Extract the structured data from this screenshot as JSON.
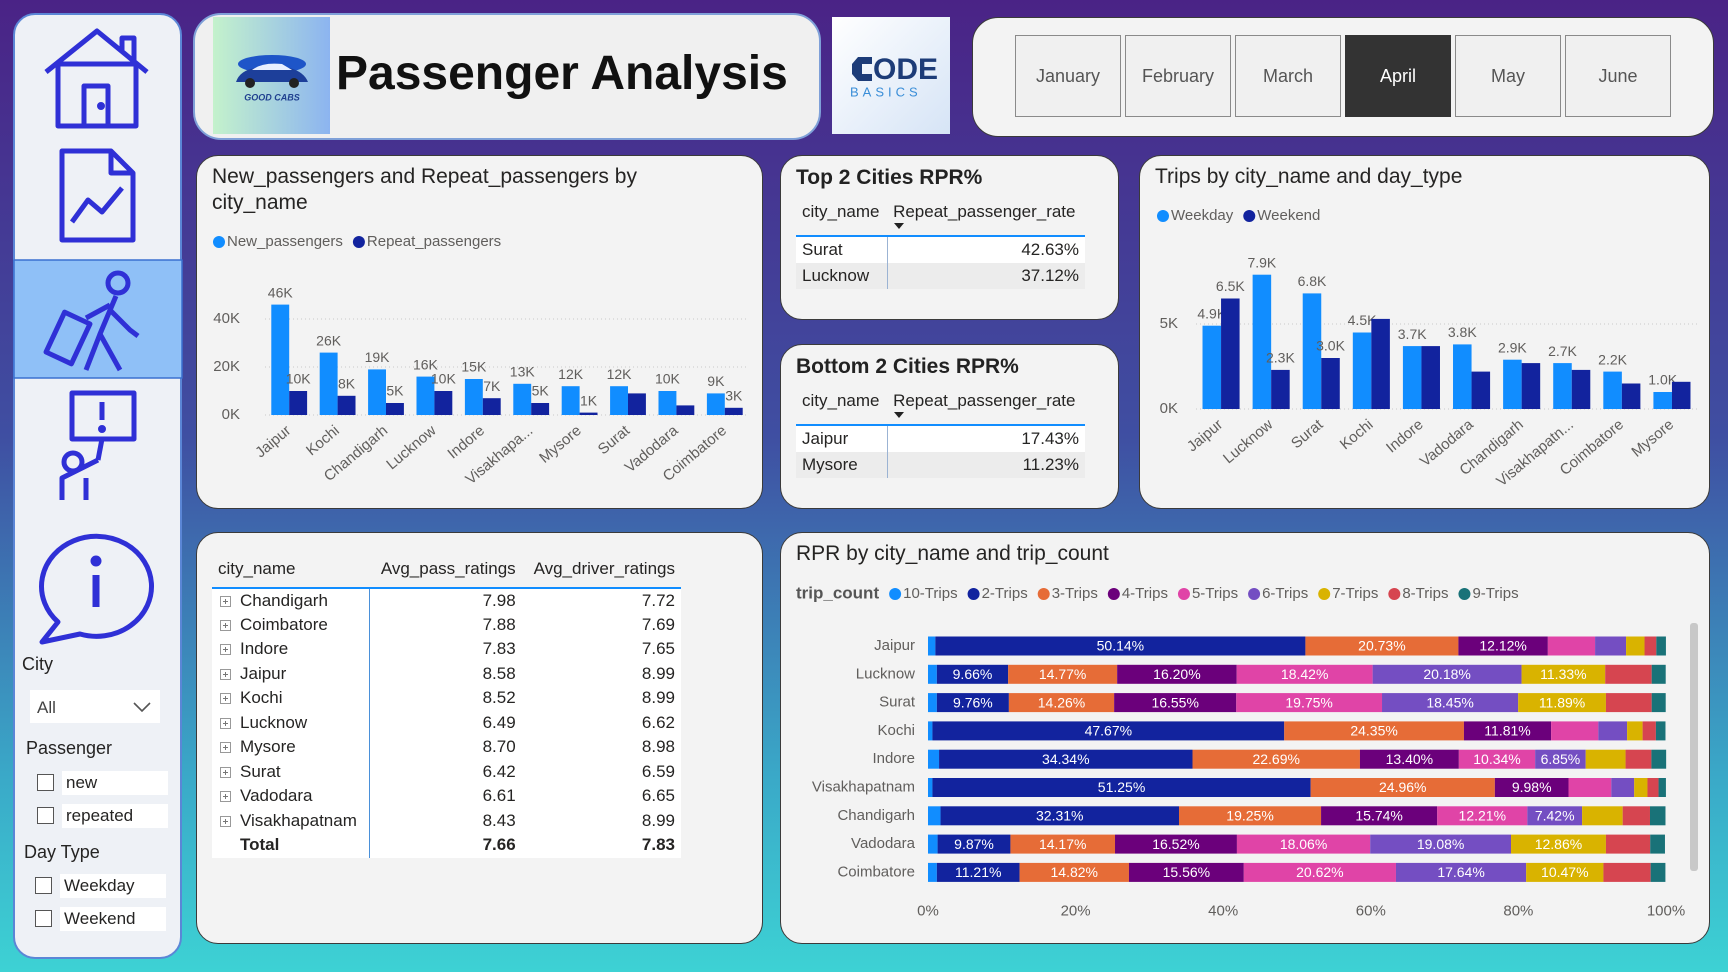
{
  "header": {
    "logo_text": "GOOD CABS",
    "title": "Passenger Analysis",
    "brand_top": "ODE",
    "brand_bottom": "BASICS"
  },
  "months": {
    "options": [
      "January",
      "February",
      "March",
      "April",
      "May",
      "June"
    ],
    "selected_index": 3
  },
  "filters": {
    "city": {
      "label": "City",
      "value": "All"
    },
    "passenger": {
      "label": "Passenger",
      "options": [
        "new",
        "repeated"
      ]
    },
    "day_type": {
      "label": "Day Type",
      "options": [
        "Weekday",
        "Weekend"
      ]
    }
  },
  "top_cities": {
    "title": "Top 2 Cities RPR%",
    "columns": [
      "city_name",
      "Repeat_passenger_rate"
    ],
    "rows": [
      [
        "Surat",
        "42.63%"
      ],
      [
        "Lucknow",
        "37.12%"
      ]
    ]
  },
  "bottom_cities": {
    "title": "Bottom 2 Cities RPR%",
    "columns": [
      "city_name",
      "Repeat_passenger_rate"
    ],
    "rows": [
      [
        "Jaipur",
        "17.43%"
      ],
      [
        "Mysore",
        "11.23%"
      ]
    ]
  },
  "ratings_table": {
    "columns": [
      "city_name",
      "Avg_pass_ratings",
      "Avg_driver_ratings"
    ],
    "rows": [
      [
        "Chandigarh",
        "7.98",
        "7.72"
      ],
      [
        "Coimbatore",
        "7.88",
        "7.69"
      ],
      [
        "Indore",
        "7.83",
        "7.65"
      ],
      [
        "Jaipur",
        "8.58",
        "8.99"
      ],
      [
        "Kochi",
        "8.52",
        "8.99"
      ],
      [
        "Lucknow",
        "6.49",
        "6.62"
      ],
      [
        "Mysore",
        "8.70",
        "8.98"
      ],
      [
        "Surat",
        "6.42",
        "6.59"
      ],
      [
        "Vadodara",
        "6.61",
        "6.65"
      ],
      [
        "Visakhapatnam",
        "8.43",
        "8.99"
      ]
    ],
    "total": [
      "Total",
      "7.66",
      "7.83"
    ]
  },
  "chart_data": [
    {
      "type": "bar",
      "title": "New_passengers and Repeat_passengers by city_name",
      "categories": [
        "Jaipur",
        "Kochi",
        "Chandigarh",
        "Lucknow",
        "Indore",
        "Visakhapa...",
        "Mysore",
        "Surat",
        "Vadodara",
        "Coimbatore"
      ],
      "series": [
        {
          "name": "New_passengers",
          "color": "#118dff",
          "values": [
            46000,
            26000,
            19000,
            16000,
            15000,
            13000,
            12000,
            12000,
            10000,
            9000
          ],
          "value_labels": [
            "46K",
            "26K",
            "19K",
            "16K",
            "15K",
            "13K",
            "12K",
            "12K",
            "10K",
            "9K"
          ]
        },
        {
          "name": "Repeat_passengers",
          "color": "#12239e",
          "values": [
            10000,
            8000,
            5000,
            10000,
            7000,
            5000,
            1000,
            9000,
            4000,
            3000
          ],
          "value_labels": [
            "10K",
            "8K",
            "5K",
            "10K",
            "7K",
            "5K",
            "1K",
            null,
            null,
            "3K"
          ]
        }
      ],
      "ylim": [
        0,
        50000
      ],
      "yticks": [
        {
          "value": 0,
          "label": "0K"
        },
        {
          "value": 20000,
          "label": "20K"
        },
        {
          "value": 40000,
          "label": "40K"
        }
      ],
      "grid": true
    },
    {
      "type": "bar",
      "title": "Trips by city_name and day_type",
      "categories": [
        "Jaipur",
        "Lucknow",
        "Surat",
        "Kochi",
        "Indore",
        "Vadodara",
        "Chandigarh",
        "Visakhapatn...",
        "Coimbatore",
        "Mysore"
      ],
      "series": [
        {
          "name": "Weekday",
          "color": "#118dff",
          "values": [
            4900,
            7900,
            6800,
            4500,
            3700,
            3800,
            2900,
            2700,
            2200,
            1000
          ],
          "value_labels": [
            "4.9K",
            "7.9K",
            "6.8K",
            "4.5K",
            "3.7K",
            "3.8K",
            "2.9K",
            "2.7K",
            "2.2K",
            "1.0K"
          ]
        },
        {
          "name": "Weekend",
          "color": "#12239e",
          "values": [
            6500,
            2300,
            3000,
            5300,
            3700,
            2200,
            2700,
            2300,
            1500,
            1600
          ],
          "value_labels": [
            "6.5K",
            "2.3K",
            "3.0K",
            null,
            null,
            null,
            null,
            null,
            null,
            null
          ]
        }
      ],
      "ylim": [
        0,
        8500
      ],
      "yticks": [
        {
          "value": 0,
          "label": "0K"
        },
        {
          "value": 5000,
          "label": "5K"
        }
      ],
      "grid": true
    },
    {
      "type": "bar",
      "orientation": "horizontal",
      "stacked": true,
      "title": "RPR by city_name and trip_count",
      "legend_title": "trip_count",
      "categories": [
        "Jaipur",
        "Lucknow",
        "Surat",
        "Kochi",
        "Indore",
        "Visakhapatnam",
        "Chandigarh",
        "Vadodara",
        "Coimbatore"
      ],
      "series": [
        {
          "name": "10-Trips",
          "color": "#118dff",
          "values": [
            1.0,
            1.2,
            1.2,
            0.6,
            1.5,
            0.6,
            1.7,
            1.3,
            1.2
          ]
        },
        {
          "name": "2-Trips",
          "color": "#12239e",
          "values": [
            50.14,
            9.66,
            9.76,
            47.67,
            34.34,
            51.25,
            32.31,
            9.87,
            11.21
          ],
          "value_labels": [
            "50.14%",
            "9.66%",
            "9.76%",
            "47.67%",
            "34.34%",
            "51.25%",
            "32.31%",
            "9.87%",
            "11.21%"
          ]
        },
        {
          "name": "3-Trips",
          "color": "#e66c37",
          "values": [
            20.73,
            14.77,
            14.26,
            24.35,
            22.69,
            24.96,
            19.25,
            14.17,
            14.82
          ],
          "value_labels": [
            "20.73%",
            "14.77%",
            "14.26%",
            "24.35%",
            "22.69%",
            "24.96%",
            "19.25%",
            "14.17%",
            "14.82%"
          ]
        },
        {
          "name": "4-Trips",
          "color": "#6b007b",
          "values": [
            12.12,
            16.2,
            16.55,
            11.81,
            13.4,
            9.98,
            15.74,
            16.52,
            15.56
          ],
          "value_labels": [
            "12.12%",
            "16.20%",
            "16.55%",
            "11.81%",
            "13.40%",
            "9.98%",
            "15.74%",
            "16.52%",
            "15.56%"
          ]
        },
        {
          "name": "5-Trips",
          "color": "#e044a7",
          "values": [
            6.4,
            18.42,
            19.75,
            6.4,
            10.34,
            5.8,
            12.21,
            18.06,
            20.62
          ],
          "value_labels": [
            null,
            "18.42%",
            "19.75%",
            null,
            "10.34%",
            null,
            "12.21%",
            "18.06%",
            "20.62%"
          ]
        },
        {
          "name": "6-Trips",
          "color": "#744ec2",
          "values": [
            4.2,
            20.18,
            18.45,
            3.9,
            6.85,
            3.1,
            7.42,
            19.08,
            17.64
          ],
          "value_labels": [
            null,
            "20.18%",
            "18.45%",
            null,
            "6.85%",
            null,
            "7.42%",
            "19.08%",
            "17.64%"
          ]
        },
        {
          "name": "7-Trips",
          "color": "#d9b300",
          "values": [
            2.5,
            11.33,
            11.89,
            2.1,
            5.4,
            1.8,
            5.5,
            12.86,
            10.47
          ],
          "value_labels": [
            null,
            "11.33%",
            "11.89%",
            null,
            null,
            null,
            null,
            "12.86%",
            "10.47%"
          ]
        },
        {
          "name": "8-Trips",
          "color": "#d64550",
          "values": [
            1.6,
            6.3,
            6.2,
            1.8,
            3.5,
            1.5,
            3.7,
            6.0,
            6.4
          ]
        },
        {
          "name": "9-Trips",
          "color": "#197278",
          "values": [
            1.3,
            1.9,
            1.9,
            1.3,
            2.0,
            1.0,
            2.1,
            2.0,
            2.0
          ]
        }
      ],
      "xlim": [
        0,
        100
      ],
      "xticks": [
        {
          "value": 0,
          "label": "0%"
        },
        {
          "value": 20,
          "label": "20%"
        },
        {
          "value": 40,
          "label": "40%"
        },
        {
          "value": 60,
          "label": "60%"
        },
        {
          "value": 80,
          "label": "80%"
        },
        {
          "value": 100,
          "label": "100%"
        }
      ],
      "grid": false
    }
  ]
}
